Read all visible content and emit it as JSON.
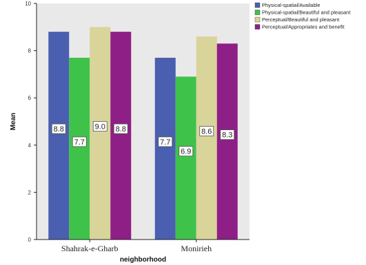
{
  "chart_data": {
    "type": "bar",
    "title": "",
    "xlabel": "neighborhood",
    "ylabel": "Mean",
    "ylim": [
      0,
      10
    ],
    "yticks": [
      "0",
      "2",
      "4",
      "6",
      "8",
      "10"
    ],
    "grid": false,
    "legend_position": "top-right",
    "categories": [
      "Shahrak-e-Gharb",
      "Monirieh"
    ],
    "series": [
      {
        "name": "Physical-spatial/Available",
        "values": [
          8.8,
          7.7
        ],
        "labels": [
          "8.8",
          "7.7"
        ],
        "color": "#4a5fb0"
      },
      {
        "name": "Physical-spatial/Beautiful and pleasant",
        "values": [
          7.7,
          6.9
        ],
        "labels": [
          "7.7",
          "6.9"
        ],
        "color": "#3fc24a"
      },
      {
        "name": "Perceptual/Beautiful and pleasant",
        "values": [
          9.0,
          8.6
        ],
        "labels": [
          "9.0",
          "8.6"
        ],
        "color": "#d9d49a"
      },
      {
        "name": "Perceptual/Appropriates and benefit",
        "values": [
          8.8,
          8.3
        ],
        "labels": [
          "8.8",
          "8.3"
        ],
        "color": "#8e1f86"
      }
    ]
  },
  "colors": {
    "plot_background": "#e9e9e9",
    "axis": "#222222"
  }
}
